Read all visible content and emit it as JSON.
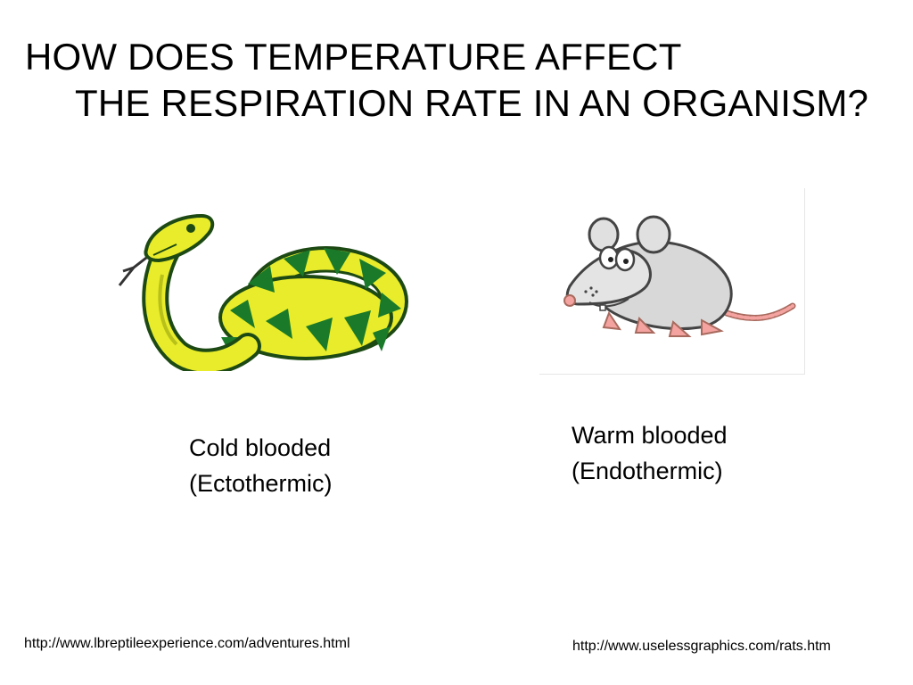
{
  "title": {
    "line1": "HOW DOES TEMPERATURE AFFECT",
    "line2": "THE RESPIRATION RATE IN AN ORGANISM?"
  },
  "organisms": [
    {
      "illustration": "snake-illustration",
      "label_line1": "Cold blooded",
      "label_line2": "(Ectothermic)",
      "source": "http://www.lbreptileexperience.com/adventures.html"
    },
    {
      "illustration": "rat-illustration",
      "label_line1": "Warm blooded",
      "label_line2": "(Endothermic)",
      "source": "http://www.uselessgraphics.com/rats.htm"
    }
  ],
  "colors": {
    "snake_yellow": "#e8ec2a",
    "snake_green": "#1a7a2a",
    "rat_gray": "#d8d8d8",
    "rat_pink": "#f4a3a0"
  }
}
